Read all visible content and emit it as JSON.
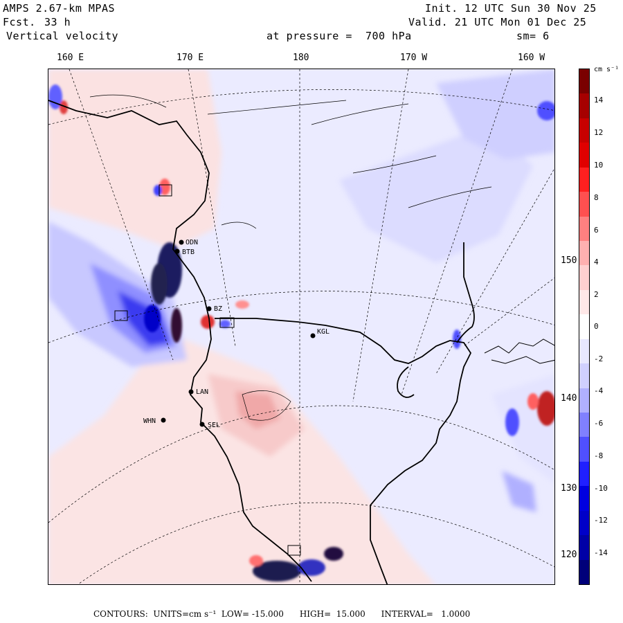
{
  "header": {
    "model": "AMPS 2.67-km MPAS",
    "fcst_label": "Fcst.",
    "fcst_value": "33 h",
    "field": "Vertical velocity",
    "level": "at pressure =  700 hPa",
    "init": "Init. 12 UTC Sun 30 Nov 25",
    "valid": "Valid. 21 UTC Mon 01 Dec 25",
    "smoothing": "sm= 6"
  },
  "axes": {
    "top": [
      "160 E",
      "170 E",
      "180",
      "170 W",
      "160 W"
    ],
    "right": [
      "150 W",
      "140 W",
      "130 W",
      "120 W"
    ]
  },
  "colorbar": {
    "unit": "cm s⁻¹",
    "ticks": [
      "14",
      "12",
      "10",
      "8",
      "6",
      "4",
      "2",
      "0",
      "-2",
      "-4",
      "-6",
      "-8",
      "-10",
      "-12",
      "-14"
    ],
    "colors": [
      "#7a0000",
      "#a60000",
      "#c80000",
      "#e00000",
      "#ff2020",
      "#ff5050",
      "#ff8080",
      "#ffb0b0",
      "#ffd0d0",
      "#ffe8e8",
      "#ffffff",
      "#e8e8ff",
      "#d0d0ff",
      "#b0b0ff",
      "#8080ff",
      "#5050ff",
      "#2020ff",
      "#0000e0",
      "#0000c8",
      "#0000a6",
      "#00007a"
    ]
  },
  "stations": [
    {
      "code": "ODN"
    },
    {
      "code": "BTB"
    },
    {
      "code": "BZ"
    },
    {
      "code": "KGL"
    },
    {
      "code": "LAN"
    },
    {
      "code": "WHN"
    },
    {
      "code": "SEL"
    }
  ],
  "footer": {
    "text": "CONTOURS:  UNITS=cm s⁻¹  LOW= -15.000      HIGH=  15.000      INTERVAL=   1.0000"
  }
}
